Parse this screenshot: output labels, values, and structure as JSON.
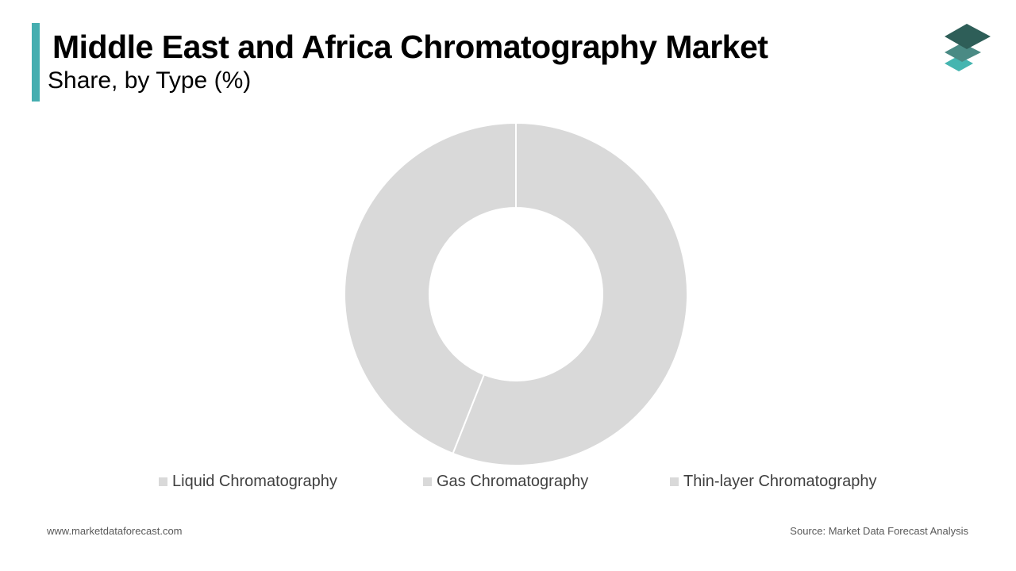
{
  "header": {
    "title": "Middle East and Africa Chromatography Market",
    "subtitle": "Share, by Type (%)",
    "accent_color": "#45aeb0"
  },
  "logo": {
    "icon": "stacked-layers-logo-icon",
    "colors": [
      "#2e5e58",
      "#4a8a84",
      "#45b5b0"
    ]
  },
  "chart_data": {
    "type": "pie",
    "donut": true,
    "categories": [
      "Liquid Chromatography",
      "Gas Chromatography",
      "Thin-layer Chromatography"
    ],
    "values": [
      56,
      44,
      0
    ],
    "colors": [
      "#d9d9d9",
      "#d9d9d9",
      "#d9d9d9"
    ],
    "legend_position": "bottom"
  },
  "footer": {
    "website": "www.marketdataforecast.com",
    "source": "Source: Market Data Forecast Analysis"
  }
}
